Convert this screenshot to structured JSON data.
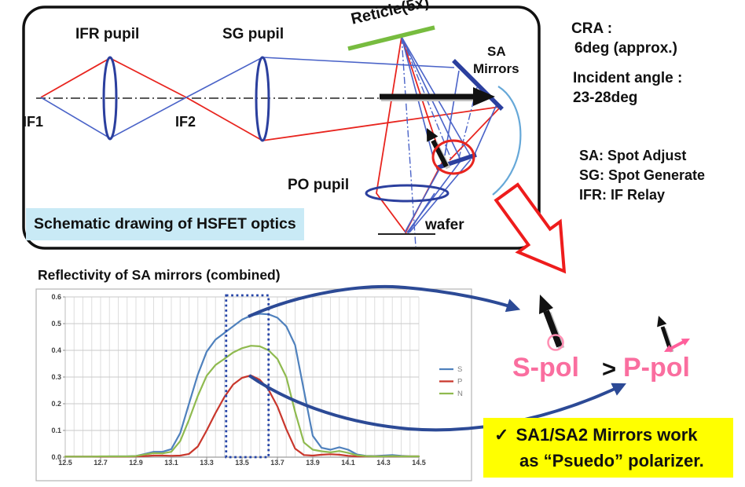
{
  "schematic": {
    "caption": "Schematic drawing of HSFET optics",
    "labels": {
      "ifr_pupil": "IFR pupil",
      "sg_pupil": "SG pupil",
      "reticle": "Reticle(5x)",
      "sa_line1": "SA",
      "sa_line2": "Mirrors",
      "if1": "IF1",
      "if2": "IF2",
      "po_pupil": "PO pupil",
      "wafer": "wafer"
    }
  },
  "side_notes": {
    "cra_label": "CRA :",
    "cra_value": "6deg (approx.)",
    "incident_label": "Incident angle :",
    "incident_value": "23-28deg",
    "abbrs": [
      "SA: Spot Adjust",
      "SG: Spot Generate",
      "IFR: IF Relay"
    ]
  },
  "comparison": {
    "s_pol": "S-pol",
    "greater": ">",
    "p_pol": "P-pol"
  },
  "note": {
    "check": "✓",
    "line1": "SA1/SA2 Mirrors work",
    "line2": "as “Psuedo” polarizer."
  },
  "chart_data": {
    "type": "line",
    "title": "Reflectivity of SA mirrors (combined)",
    "xlabel": "",
    "ylabel": "",
    "xlim": [
      12.5,
      14.5
    ],
    "ylim": [
      0,
      0.6
    ],
    "xticks": [
      "12.5",
      "12.7",
      "12.9",
      "13.1",
      "13.3",
      "13.5",
      "13.7",
      "13.9",
      "14.1",
      "14.3",
      "14.5"
    ],
    "yticks": [
      "0.0",
      "0.1",
      "0.2",
      "0.3",
      "0.4",
      "0.5",
      "0.6"
    ],
    "grid": {
      "x_step": 0.05,
      "y_step": 0.1
    },
    "legend_position": "right",
    "x": [
      12.5,
      12.55,
      12.6,
      12.65,
      12.7,
      12.75,
      12.8,
      12.85,
      12.9,
      12.95,
      13.0,
      13.05,
      13.1,
      13.15,
      13.2,
      13.25,
      13.3,
      13.35,
      13.4,
      13.45,
      13.5,
      13.55,
      13.6,
      13.65,
      13.7,
      13.75,
      13.8,
      13.85,
      13.9,
      13.95,
      14.0,
      14.05,
      14.1,
      14.15,
      14.2,
      14.25,
      14.3,
      14.35,
      14.4,
      14.45,
      14.5
    ],
    "series": [
      {
        "name": "S",
        "color": "#4f81bd",
        "values": [
          0.002,
          0.002,
          0.002,
          0.002,
          0.002,
          0.003,
          0.003,
          0.003,
          0.004,
          0.012,
          0.02,
          0.02,
          0.03,
          0.09,
          0.2,
          0.31,
          0.395,
          0.44,
          0.465,
          0.49,
          0.515,
          0.53,
          0.537,
          0.535,
          0.522,
          0.49,
          0.42,
          0.25,
          0.08,
          0.035,
          0.028,
          0.037,
          0.028,
          0.01,
          0.005,
          0.004,
          0.006,
          0.008,
          0.005,
          0.003,
          0.003
        ]
      },
      {
        "name": "P",
        "color": "#c9372c",
        "values": [
          0.002,
          0.002,
          0.002,
          0.002,
          0.002,
          0.002,
          0.002,
          0.002,
          0.003,
          0.004,
          0.006,
          0.006,
          0.005,
          0.006,
          0.012,
          0.04,
          0.1,
          0.165,
          0.225,
          0.272,
          0.297,
          0.306,
          0.29,
          0.252,
          0.19,
          0.105,
          0.032,
          0.008,
          0.006,
          0.009,
          0.011,
          0.009,
          0.005,
          0.003,
          0.003,
          0.003,
          0.003,
          0.003,
          0.003,
          0.003,
          0.003
        ]
      },
      {
        "name": "N",
        "color": "#8fba4f",
        "values": [
          0.002,
          0.002,
          0.002,
          0.002,
          0.003,
          0.003,
          0.003,
          0.003,
          0.004,
          0.01,
          0.015,
          0.014,
          0.02,
          0.06,
          0.14,
          0.23,
          0.305,
          0.345,
          0.368,
          0.392,
          0.408,
          0.417,
          0.415,
          0.4,
          0.368,
          0.3,
          0.17,
          0.055,
          0.028,
          0.022,
          0.018,
          0.023,
          0.016,
          0.007,
          0.004,
          0.003,
          0.003,
          0.004,
          0.003,
          0.003,
          0.003
        ]
      }
    ],
    "highlight_box": {
      "x1": 13.41,
      "x2": 13.65,
      "y1": 0,
      "y2": 0.6
    }
  }
}
